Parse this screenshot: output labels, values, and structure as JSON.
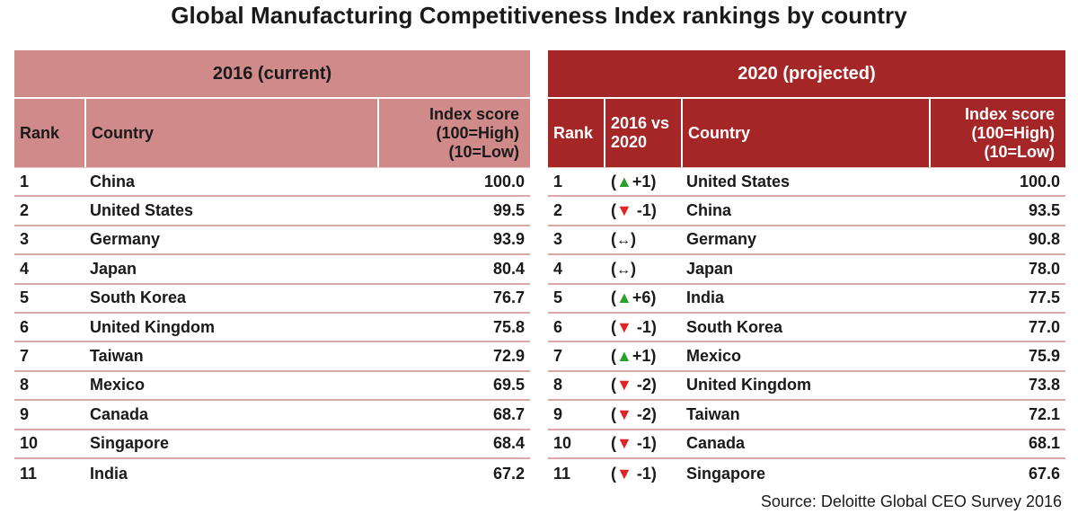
{
  "title": "Global Manufacturing Competitiveness Index rankings by country",
  "left": {
    "banner": "2016 (current)",
    "headers": {
      "rank": "Rank",
      "country": "Country",
      "score_line1": "Index score",
      "score_line2": "(100=High)",
      "score_line3": "(10=Low)"
    },
    "rows": [
      {
        "rank": "1",
        "country": "China",
        "score": "100.0"
      },
      {
        "rank": "2",
        "country": "United States",
        "score": "99.5"
      },
      {
        "rank": "3",
        "country": "Germany",
        "score": "93.9"
      },
      {
        "rank": "4",
        "country": "Japan",
        "score": "80.4"
      },
      {
        "rank": "5",
        "country": "South Korea",
        "score": "76.7"
      },
      {
        "rank": "6",
        "country": "United Kingdom",
        "score": "75.8"
      },
      {
        "rank": "7",
        "country": "Taiwan",
        "score": "72.9"
      },
      {
        "rank": "8",
        "country": "Mexico",
        "score": "69.5"
      },
      {
        "rank": "9",
        "country": "Canada",
        "score": "68.7"
      },
      {
        "rank": "10",
        "country": "Singapore",
        "score": "68.4"
      },
      {
        "rank": "11",
        "country": "India",
        "score": "67.2"
      }
    ]
  },
  "right": {
    "banner": "2020 (projected)",
    "headers": {
      "rank": "Rank",
      "change_line1": "2016 vs",
      "change_line2": "2020",
      "country": "Country",
      "score_line1": "Index score",
      "score_line2": "(100=High)",
      "score_line3": "(10=Low)"
    },
    "rows": [
      {
        "rank": "1",
        "dir": "up",
        "change": "+1",
        "country": "United States",
        "score": "100.0"
      },
      {
        "rank": "2",
        "dir": "down",
        "change": " -1",
        "country": "China",
        "score": "93.5"
      },
      {
        "rank": "3",
        "dir": "same",
        "change": "",
        "country": "Germany",
        "score": "90.8"
      },
      {
        "rank": "4",
        "dir": "same",
        "change": "",
        "country": "Japan",
        "score": "78.0"
      },
      {
        "rank": "5",
        "dir": "up",
        "change": "+6",
        "country": "India",
        "score": "77.5"
      },
      {
        "rank": "6",
        "dir": "down",
        "change": " -1",
        "country": "South Korea",
        "score": "77.0"
      },
      {
        "rank": "7",
        "dir": "up",
        "change": "+1",
        "country": "Mexico",
        "score": "75.9"
      },
      {
        "rank": "8",
        "dir": "down",
        "change": " -2",
        "country": "United Kingdom",
        "score": "73.8"
      },
      {
        "rank": "9",
        "dir": "down",
        "change": " -2",
        "country": "Taiwan",
        "score": "72.1"
      },
      {
        "rank": "10",
        "dir": "down",
        "change": " -1",
        "country": "Canada",
        "score": "68.1"
      },
      {
        "rank": "11",
        "dir": "down",
        "change": " -1",
        "country": "Singapore",
        "score": "67.6"
      }
    ]
  },
  "source": "Source: Deloitte Global CEO Survey 2016",
  "colors": {
    "left_header": "#d08a89",
    "right_header": "#a52626",
    "up": "#2aa12a",
    "down": "#e02424"
  }
}
